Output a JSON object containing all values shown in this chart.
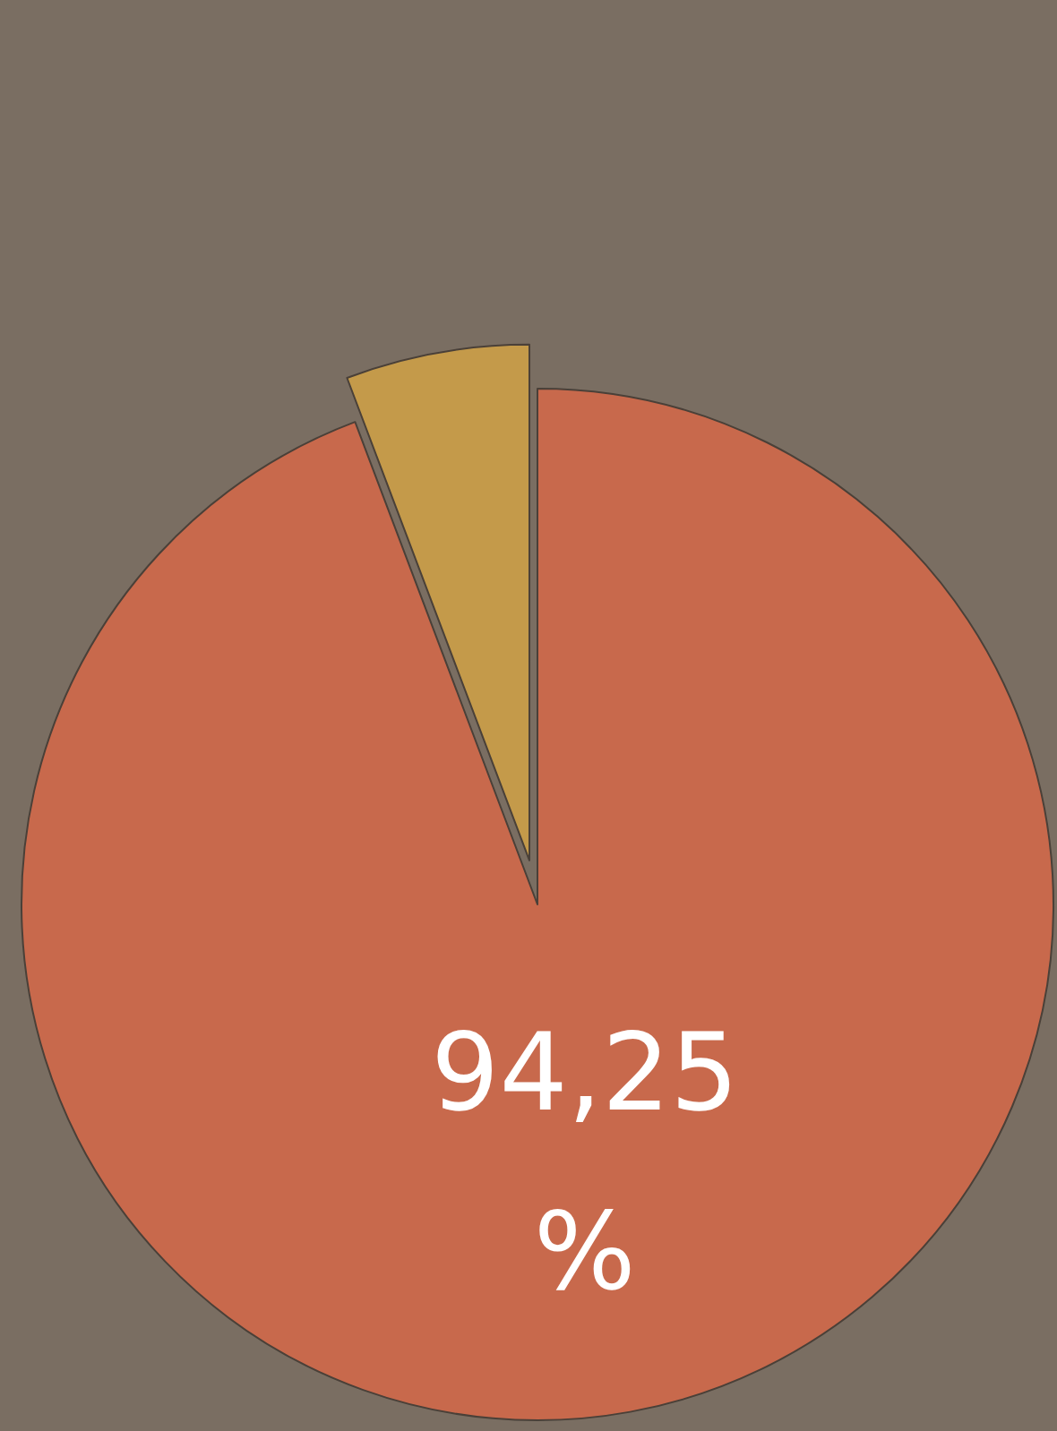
{
  "chart_data": {
    "type": "pie",
    "categories": [
      null,
      null
    ],
    "values": [
      94.25,
      5.75
    ],
    "colors": [
      "#c8694c",
      "#c49a4a"
    ],
    "value_labels": [
      "94,25 %",
      null
    ]
  }
}
